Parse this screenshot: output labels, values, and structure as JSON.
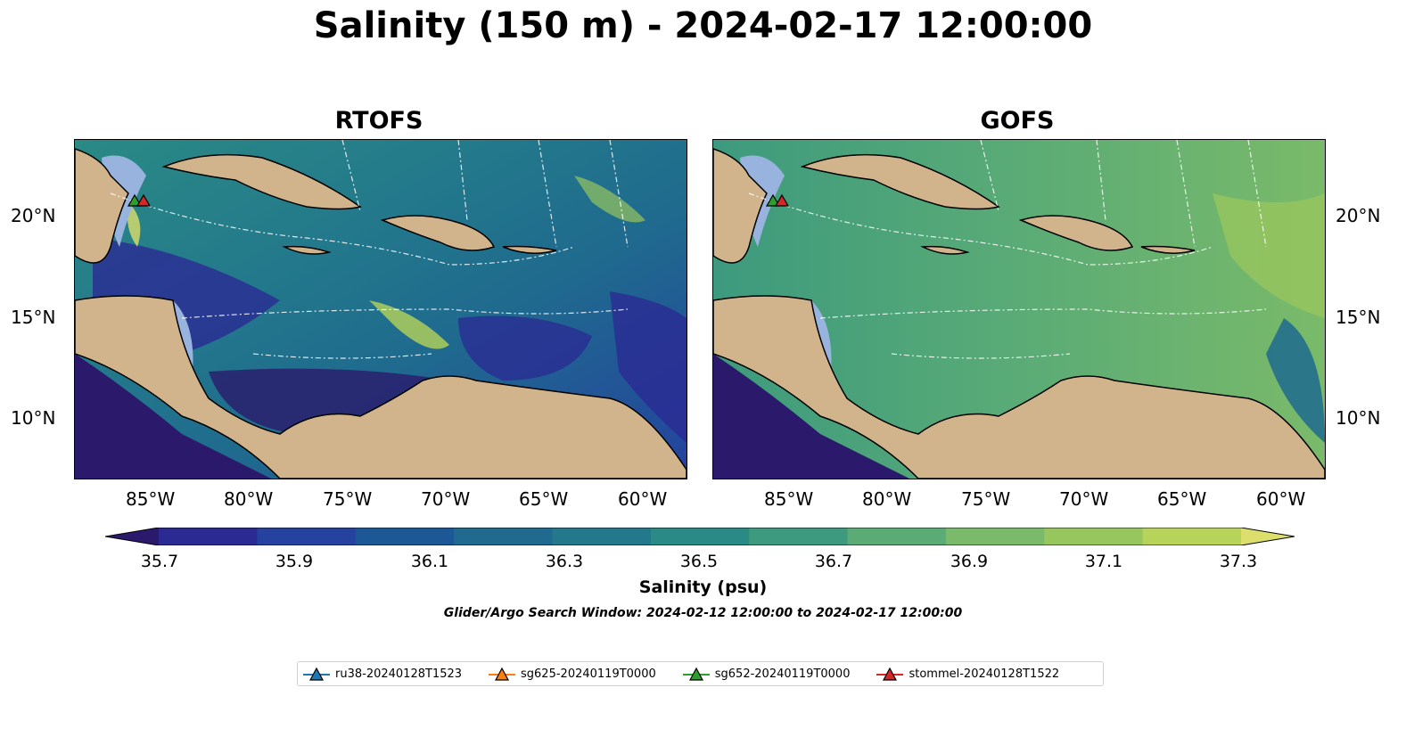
{
  "title": "Salinity (150 m) - 2024-02-17 12:00:00",
  "panels": [
    {
      "title": "RTOFS"
    },
    {
      "title": "GOFS"
    }
  ],
  "lon_ticks": [
    "85°W",
    "80°W",
    "75°W",
    "70°W",
    "65°W",
    "60°W"
  ],
  "lat_ticks": [
    "20°N",
    "15°N",
    "10°N"
  ],
  "colorbar": {
    "label": "Salinity (psu)",
    "ticks": [
      "35.7",
      "35.9",
      "36.1",
      "36.3",
      "36.5",
      "36.7",
      "36.9",
      "37.1",
      "37.3"
    ],
    "colors": [
      "#2b1a6b",
      "#2b2a93",
      "#24429e",
      "#1d5896",
      "#1f6a8e",
      "#23798b",
      "#2a8a85",
      "#3d9a7e",
      "#5aab76",
      "#7aba6a",
      "#97c55e",
      "#b7d35a",
      "#dcdf6c"
    ]
  },
  "search_window": "Glider/Argo Search Window: 2024-02-12 12:00:00 to 2024-02-17 12:00:00",
  "legend": [
    {
      "label": "ru38-20240128T1523",
      "color": "#1f77b4"
    },
    {
      "label": "sg625-20240119T0000",
      "color": "#ff7f0e"
    },
    {
      "label": "sg652-20240119T0000",
      "color": "#2ca02c"
    },
    {
      "label": "stommel-20240128T1522",
      "color": "#d62728"
    }
  ],
  "land_color": "#d2b48c",
  "shelf_color": "#98b4de"
}
